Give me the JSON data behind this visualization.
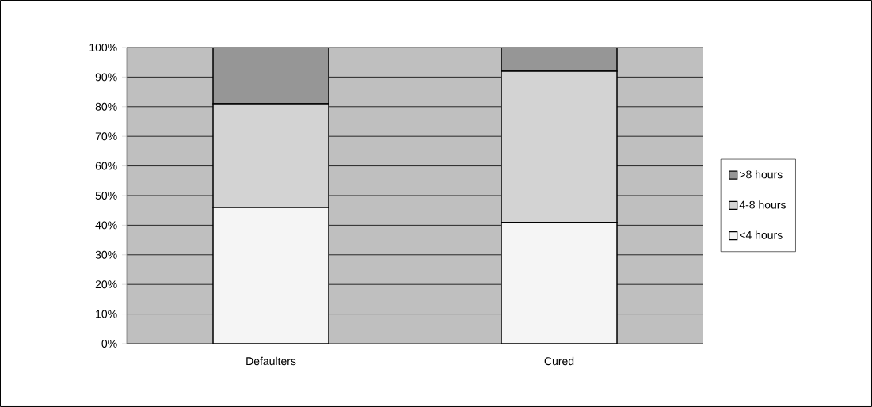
{
  "chart_data": {
    "type": "bar",
    "stacked": true,
    "categories": [
      "Defaulters",
      "Cured"
    ],
    "series": [
      {
        "name": "<4 hours",
        "color": "#f5f5f5",
        "values": [
          46,
          41
        ]
      },
      {
        "name": "4-8 hours",
        "color": "#d3d3d3",
        "values": [
          35,
          51
        ]
      },
      {
        "name": ">8 hours",
        "color": "#969696",
        "values": [
          19,
          8
        ]
      }
    ],
    "ylim": [
      0,
      100
    ],
    "yticks": [
      {
        "value": 0,
        "label": "0%"
      },
      {
        "value": 10,
        "label": "10%"
      },
      {
        "value": 20,
        "label": "20%"
      },
      {
        "value": 30,
        "label": "30%"
      },
      {
        "value": 40,
        "label": "40%"
      },
      {
        "value": 50,
        "label": "50%"
      },
      {
        "value": 60,
        "label": "60%"
      },
      {
        "value": 70,
        "label": "70%"
      },
      {
        "value": 80,
        "label": "80%"
      },
      {
        "value": 90,
        "label": "90%"
      },
      {
        "value": 100,
        "label": "100%"
      }
    ],
    "grid": "y",
    "legend": "right"
  }
}
